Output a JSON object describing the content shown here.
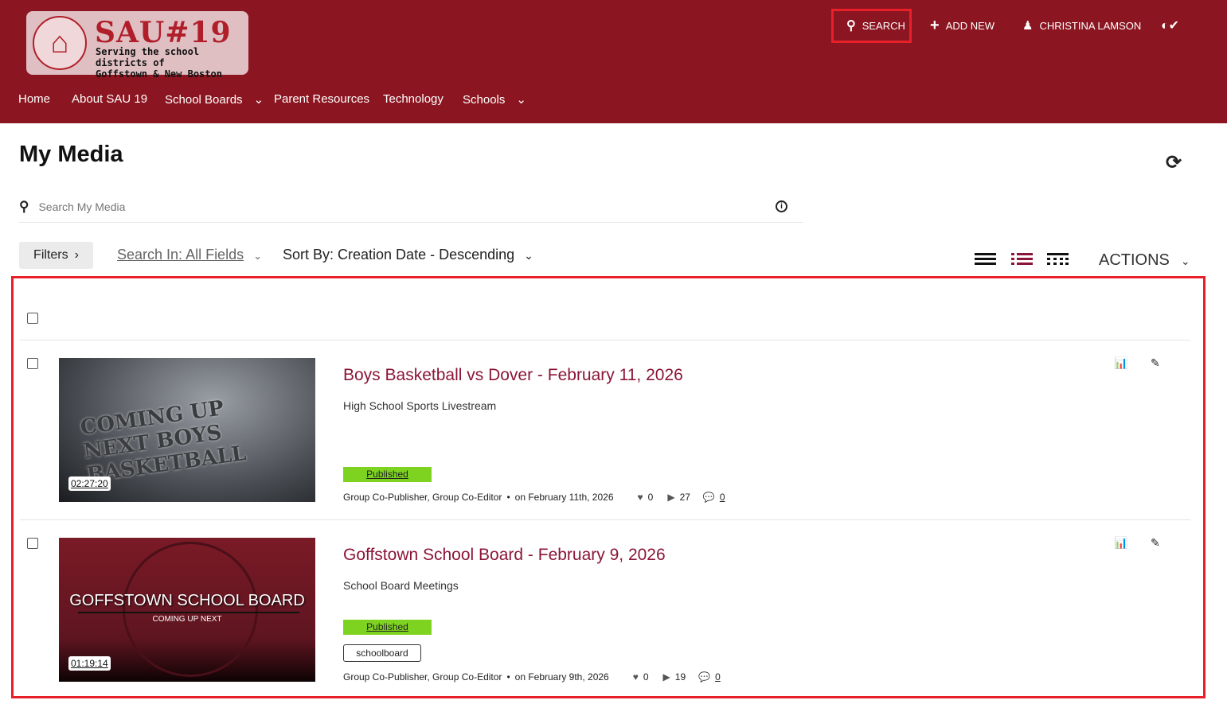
{
  "header": {
    "logo": {
      "title": "SAU#19",
      "subtitle_line1": "Serving the school districts of",
      "subtitle_line2": "Goffstown & New Boston"
    },
    "search": "SEARCH",
    "add_new": "ADD NEW",
    "user": "CHRISTINA LAMSON",
    "nav": [
      "Home",
      "About SAU 19",
      "School Boards",
      "Parent Resources",
      "Technology",
      "Schools"
    ]
  },
  "page": {
    "title": "My Media",
    "search_placeholder": "Search My Media",
    "filters": "Filters",
    "search_in_label": "Search In:",
    "search_in_value": "All Fields",
    "sort": "Sort By: Creation Date - Descending",
    "actions": "ACTIONS"
  },
  "entries": [
    {
      "title": "Boys Basketball vs Dover - February 11, 2026",
      "category": "High School Sports Livestream",
      "status": "Published",
      "duration": "02:27:20",
      "thumb_text": "COMING UP NEXT BOYS BASKETBALL",
      "roles": "Group Co-Publisher, Group Co-Editor",
      "date": "on February 11th, 2026",
      "likes": "0",
      "plays": "27",
      "comments": "0",
      "tags": []
    },
    {
      "title": "Goffstown School Board - February 9, 2026",
      "category": "School Board Meetings",
      "status": "Published",
      "duration": "01:19:14",
      "thumb_text": "GOFFSTOWN SCHOOL BOARD",
      "thumb_sub": "COMING UP NEXT",
      "roles": "Group Co-Publisher, Group Co-Editor",
      "date": "on February 9th, 2026",
      "likes": "0",
      "plays": "19",
      "comments": "0",
      "tags": [
        "schoolboard"
      ]
    }
  ],
  "colors": {
    "header": "#8b1520",
    "title": "#8b1538",
    "published": "#7ed321",
    "highlight": "#e8202a"
  }
}
